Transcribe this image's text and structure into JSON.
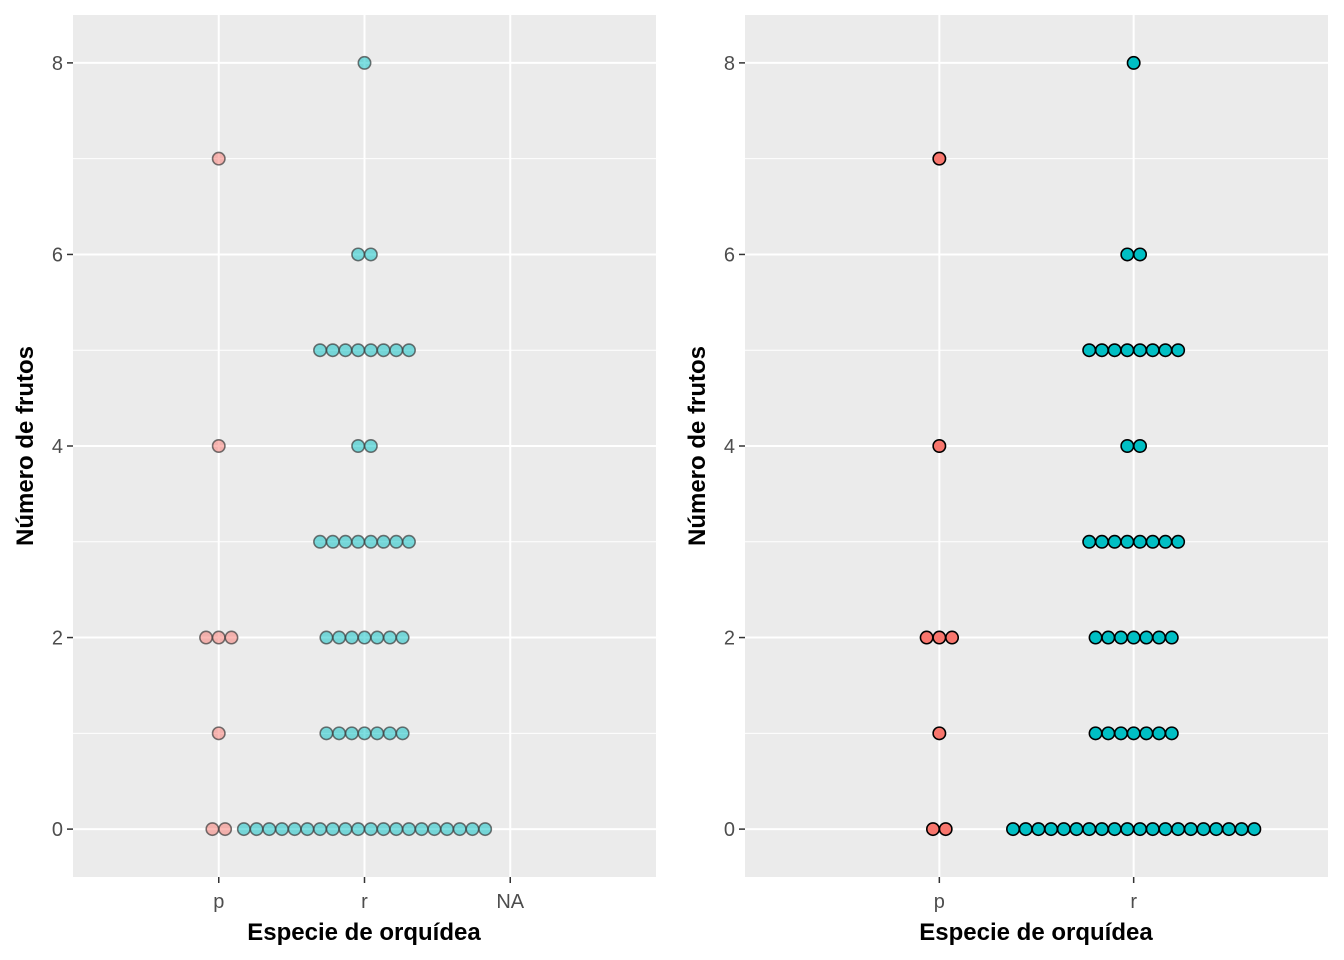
{
  "chart_data": [
    {
      "type": "dotplot",
      "title": "",
      "xlabel": "Especie de orquídea",
      "ylabel": "Número de frutos",
      "categories": [
        "p",
        "r",
        "NA"
      ],
      "ylim": [
        -0.5,
        8.5
      ],
      "yticks": [
        "0",
        "2",
        "4",
        "6",
        "8"
      ],
      "grid": true,
      "legend": "none",
      "point_style": {
        "alpha": 0.5,
        "fill": [
          "#F8766D",
          "#00BFC4"
        ]
      },
      "series": [
        {
          "category": "p",
          "color": "#F8766D",
          "counts": [
            {
              "y": 0,
              "n": 2
            },
            {
              "y": 1,
              "n": 1
            },
            {
              "y": 2,
              "n": 3
            },
            {
              "y": 4,
              "n": 1
            },
            {
              "y": 7,
              "n": 1
            }
          ]
        },
        {
          "category": "r",
          "color": "#00BFC4",
          "counts": [
            {
              "y": 0,
              "n": 20
            },
            {
              "y": 1,
              "n": 7
            },
            {
              "y": 2,
              "n": 7
            },
            {
              "y": 3,
              "n": 8
            },
            {
              "y": 4,
              "n": 2
            },
            {
              "y": 5,
              "n": 8
            },
            {
              "y": 6,
              "n": 2
            },
            {
              "y": 8,
              "n": 1
            }
          ]
        }
      ]
    },
    {
      "type": "dotplot",
      "title": "",
      "xlabel": "Especie de orquídea",
      "ylabel": "Número de frutos",
      "categories": [
        "p",
        "r"
      ],
      "ylim": [
        -0.5,
        8.5
      ],
      "yticks": [
        "0",
        "2",
        "4",
        "6",
        "8"
      ],
      "grid": true,
      "legend": "none",
      "point_style": {
        "alpha": 1,
        "fill": [
          "#F8766D",
          "#00BFC4"
        ]
      },
      "series": [
        {
          "category": "p",
          "color": "#F8766D",
          "counts": [
            {
              "y": 0,
              "n": 2
            },
            {
              "y": 1,
              "n": 1
            },
            {
              "y": 2,
              "n": 3
            },
            {
              "y": 4,
              "n": 1
            },
            {
              "y": 7,
              "n": 1
            }
          ]
        },
        {
          "category": "r",
          "color": "#00BFC4",
          "counts": [
            {
              "y": 0,
              "n": 20
            },
            {
              "y": 1,
              "n": 7
            },
            {
              "y": 2,
              "n": 7
            },
            {
              "y": 3,
              "n": 8
            },
            {
              "y": 4,
              "n": 2
            },
            {
              "y": 5,
              "n": 8
            },
            {
              "y": 6,
              "n": 2
            },
            {
              "y": 8,
              "n": 1
            }
          ]
        }
      ]
    }
  ]
}
